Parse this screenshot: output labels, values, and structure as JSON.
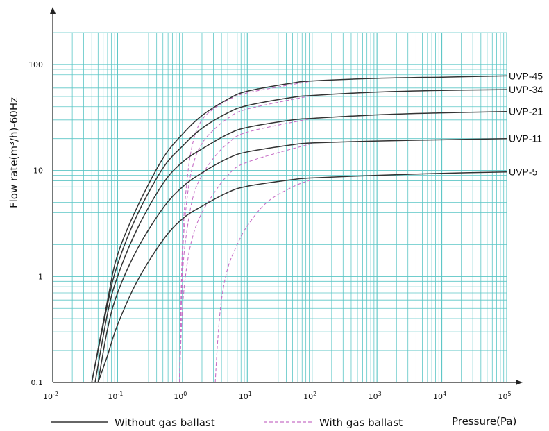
{
  "chart_data": {
    "type": "line",
    "title": "",
    "xlabel": "Pressure(Pa)",
    "ylabel": "Flow rate(m³/h)-60Hz",
    "xscale": "log",
    "yscale": "log",
    "xlim": [
      0.01,
      100000
    ],
    "ylim": [
      0.1,
      200
    ],
    "grid": true,
    "x_tick_labels": [
      {
        "base": "10",
        "exp": "-2"
      },
      {
        "base": "10",
        "exp": "-1"
      },
      {
        "base": "10",
        "exp": "0"
      },
      {
        "base": "10",
        "exp": "1"
      },
      {
        "base": "10",
        "exp": "2"
      },
      {
        "base": "10",
        "exp": "3"
      },
      {
        "base": "10",
        "exp": "4"
      },
      {
        "base": "10",
        "exp": "5"
      }
    ],
    "y_tick_labels": [
      "0.1",
      "1",
      "10",
      "100"
    ],
    "legend": {
      "placement": "bottom",
      "entries": [
        {
          "label": "Without gas ballast",
          "style": "solid",
          "color": "#333333"
        },
        {
          "label": "With gas ballast",
          "style": "dashed",
          "color": "#c770c7"
        }
      ]
    },
    "series": [
      {
        "name": "UVP-45",
        "without_gas_ballast": {
          "x": [
            0.04,
            0.07,
            0.1,
            0.2,
            0.5,
            1,
            2,
            5,
            10,
            50,
            100,
            1000,
            10000,
            100000
          ],
          "y": [
            0.1,
            0.6,
            1.6,
            4.5,
            13,
            22,
            33,
            47,
            56,
            67,
            70,
            74,
            76,
            78
          ]
        },
        "with_gas_ballast": {
          "x": [
            0.9,
            1,
            1.2,
            1.5,
            2,
            3,
            5,
            10,
            100
          ],
          "y": [
            0.1,
            2,
            9,
            20,
            30,
            38,
            46,
            54,
            70
          ]
        }
      },
      {
        "name": "UVP-34",
        "without_gas_ballast": {
          "x": [
            0.04,
            0.07,
            0.1,
            0.2,
            0.5,
            1,
            2,
            5,
            10,
            50,
            100,
            1000,
            10000,
            100000
          ],
          "y": [
            0.1,
            0.55,
            1.3,
            3.8,
            10.5,
            17,
            25,
            35,
            41,
            49,
            51,
            55,
            57,
            58
          ]
        },
        "with_gas_ballast": {
          "x": [
            0.9,
            1,
            1.2,
            1.5,
            2,
            3,
            5,
            10,
            100
          ],
          "y": [
            0.1,
            1.5,
            6,
            12,
            18,
            24,
            31,
            38,
            51
          ]
        }
      },
      {
        "name": "UVP-21",
        "without_gas_ballast": {
          "x": [
            0.045,
            0.07,
            0.1,
            0.2,
            0.5,
            1,
            2,
            5,
            10,
            50,
            100,
            1000,
            10000,
            100000
          ],
          "y": [
            0.1,
            0.45,
            1.0,
            2.8,
            7.5,
            12,
            16,
            22,
            25.5,
            30,
            31,
            33.5,
            35,
            36
          ]
        },
        "with_gas_ballast": {
          "x": [
            0.9,
            1,
            1.2,
            1.5,
            2,
            3,
            5,
            10,
            100
          ],
          "y": [
            0.1,
            1.0,
            3,
            6,
            9,
            13,
            18,
            23,
            31
          ]
        }
      },
      {
        "name": "UVP-11",
        "without_gas_ballast": {
          "x": [
            0.05,
            0.07,
            0.1,
            0.2,
            0.5,
            1,
            2,
            5,
            10,
            50,
            100,
            1000,
            10000,
            100000
          ],
          "y": [
            0.1,
            0.32,
            0.7,
            1.8,
            4.4,
            7,
            9.5,
            13,
            15,
            17.5,
            18.2,
            19,
            19.5,
            20
          ]
        },
        "with_gas_ballast": {
          "x": [
            0.9,
            1,
            1.2,
            1.5,
            2,
            3,
            5,
            10,
            100
          ],
          "y": [
            0.1,
            0.5,
            1.4,
            2.6,
            4,
            6,
            9,
            12,
            18
          ]
        }
      },
      {
        "name": "UVP-5",
        "without_gas_ballast": {
          "x": [
            0.05,
            0.07,
            0.1,
            0.2,
            0.5,
            1,
            2,
            5,
            10,
            50,
            100,
            1000,
            10000,
            100000
          ],
          "y": [
            0.1,
            0.18,
            0.35,
            0.9,
            2.2,
            3.5,
            4.6,
            6.2,
            7.1,
            8.2,
            8.5,
            9.0,
            9.4,
            9.7
          ]
        },
        "with_gas_ballast": {
          "x": [
            3.2,
            3.5,
            4,
            5,
            7,
            10,
            20,
            50,
            100
          ],
          "y": [
            0.1,
            0.25,
            0.6,
            1.2,
            2.0,
            3.0,
            5.0,
            7.0,
            8.2
          ]
        }
      }
    ]
  }
}
